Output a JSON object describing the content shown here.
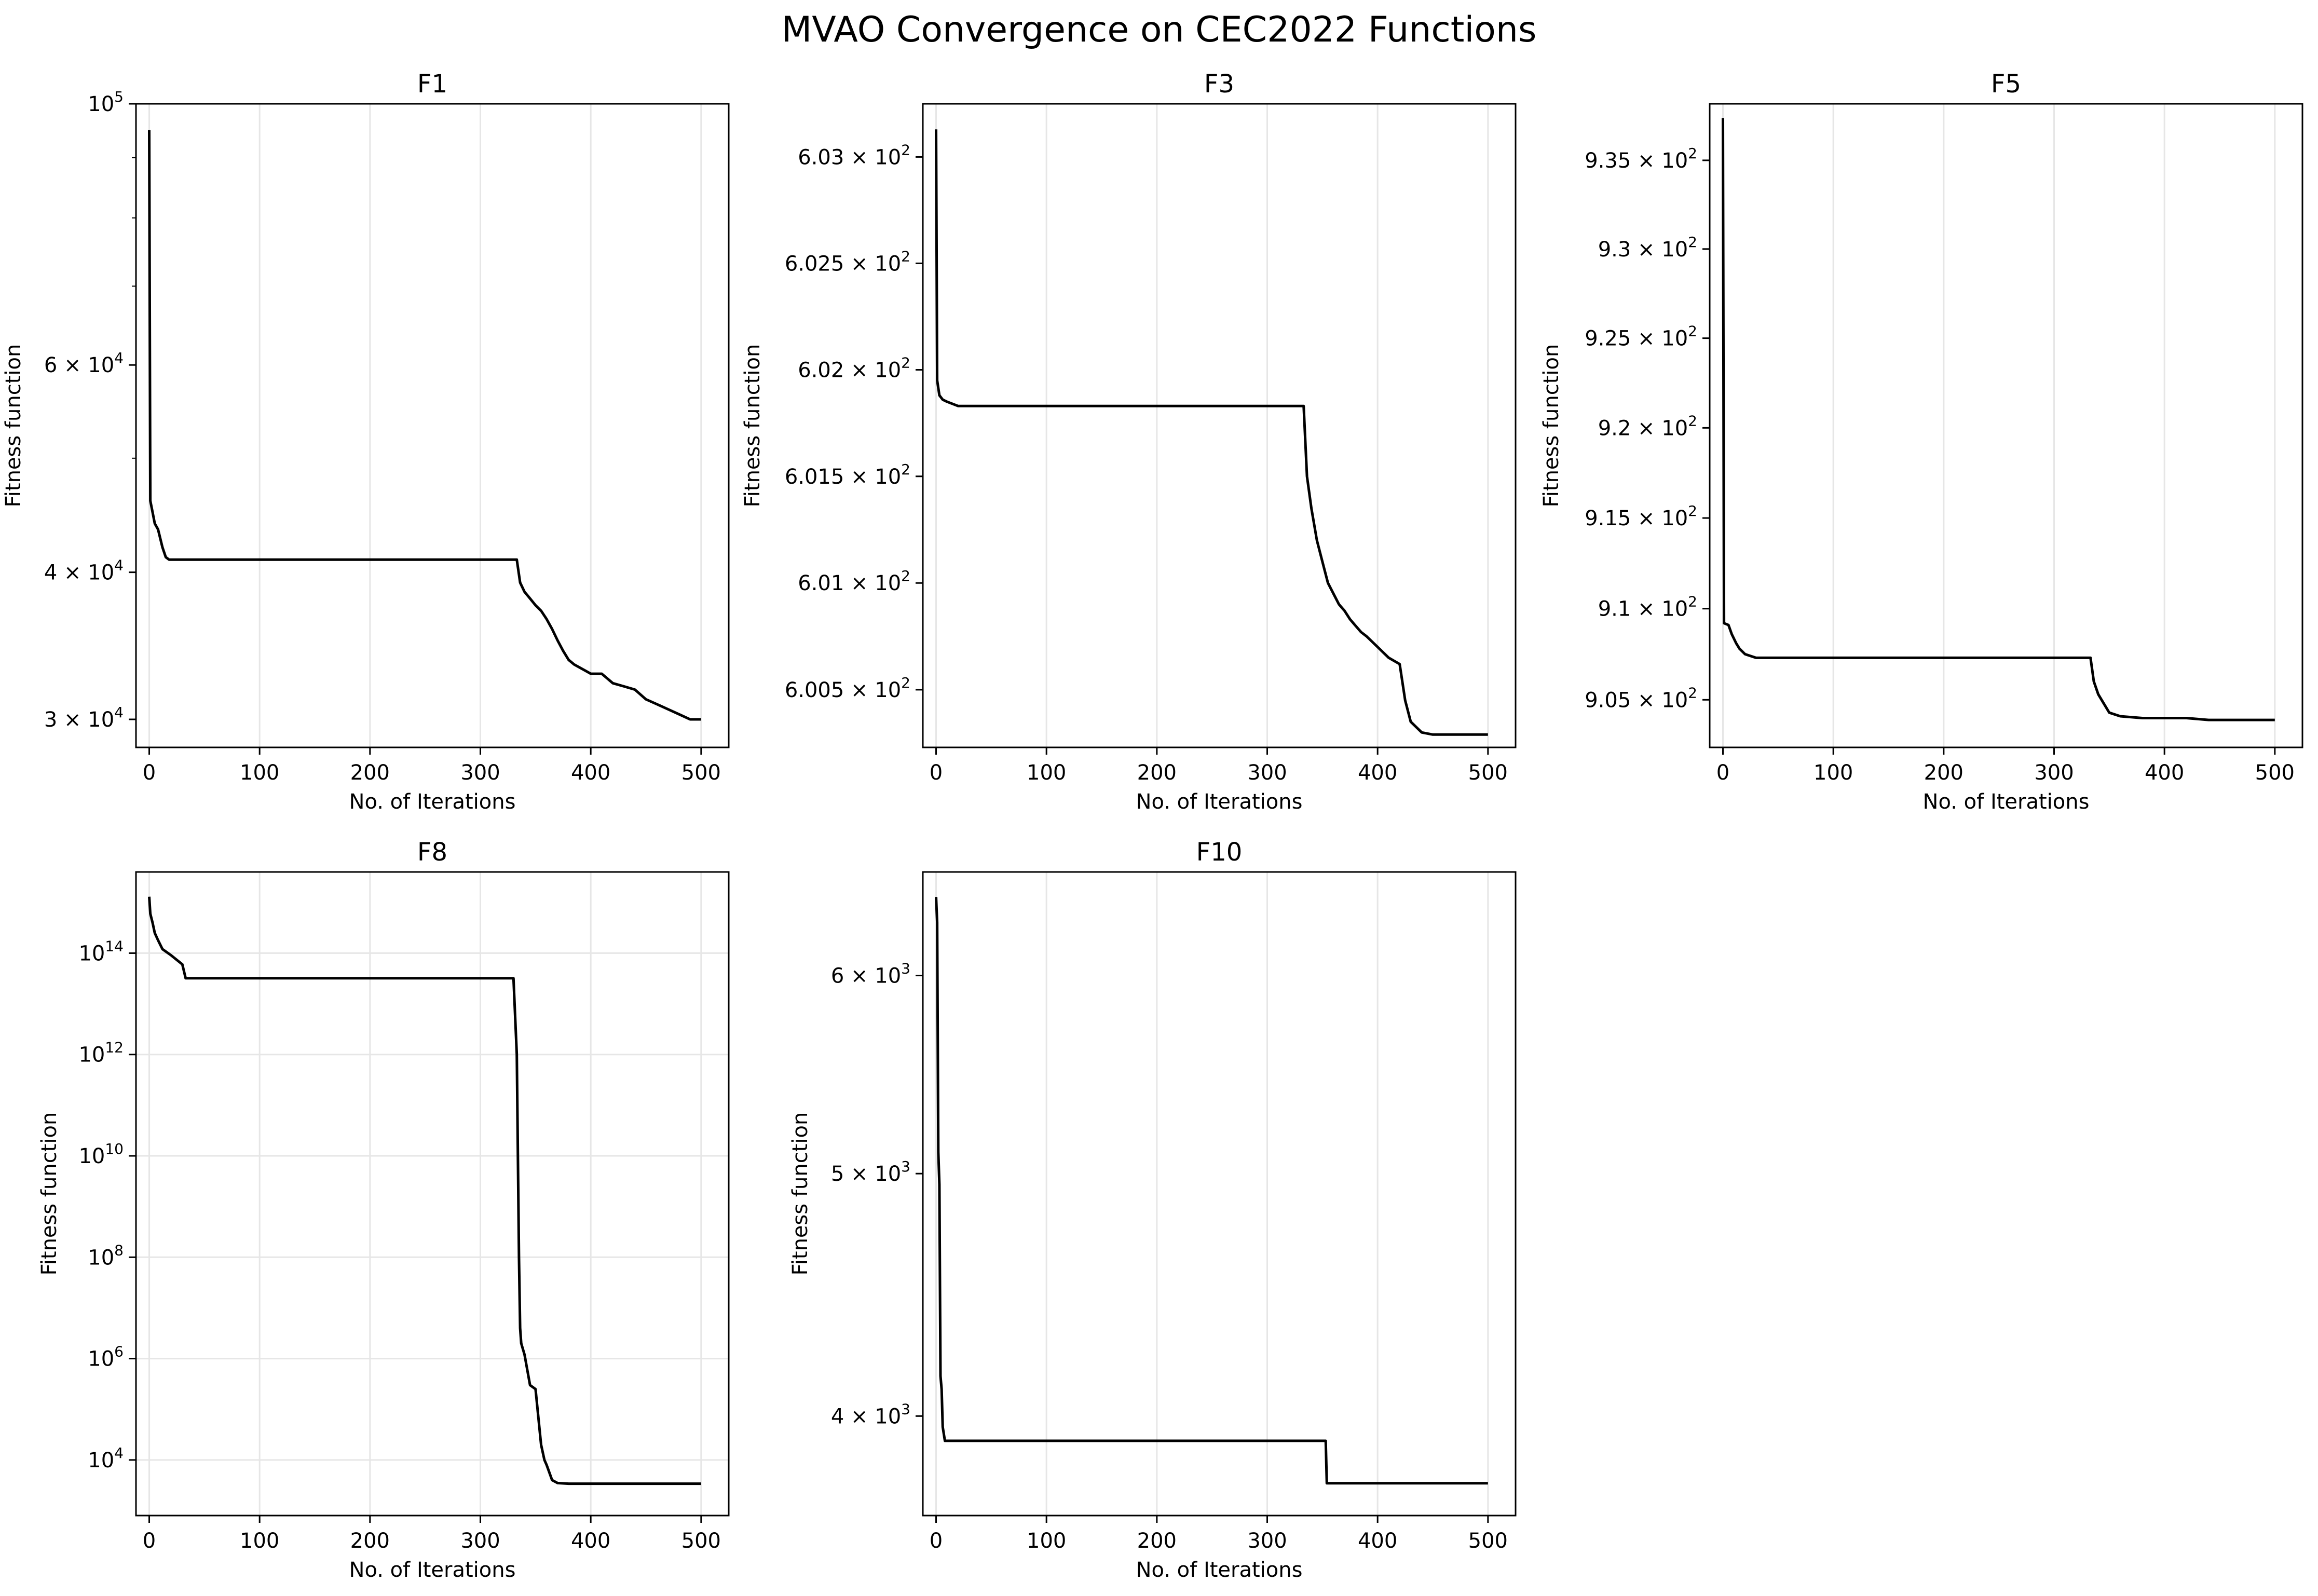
{
  "figure": {
    "title": "MVAO Convergence on CEC2022 Functions"
  },
  "chart_data": [
    {
      "type": "line",
      "title": "F1",
      "xlabel": "No. of Iterations",
      "ylabel": "Fitness function",
      "xlim": [
        -12,
        525
      ],
      "ylim": [
        28400,
        100000
      ],
      "yscale": "log",
      "grid": "x-only",
      "xticks": [
        0,
        100,
        200,
        300,
        400,
        500
      ],
      "xtick_labels": [
        "0",
        "100",
        "200",
        "300",
        "400",
        "500"
      ],
      "yticks": [
        100000,
        60000,
        40000,
        30000
      ],
      "ytick_labels": [
        [
          "10",
          "5"
        ],
        [
          "6 × 10",
          "4"
        ],
        [
          "4 × 10",
          "4"
        ],
        [
          "3 × 10",
          "4"
        ]
      ],
      "series": [
        {
          "color": "#000000",
          "x": [
            0,
            1,
            3,
            5,
            8,
            12,
            15,
            18,
            60,
            120,
            200,
            333,
            336,
            340,
            345,
            350,
            355,
            360,
            365,
            370,
            375,
            380,
            385,
            390,
            395,
            400,
            410,
            420,
            430,
            440,
            450,
            460,
            470,
            480,
            490,
            500
          ],
          "y": [
            95000,
            46000,
            45000,
            44000,
            43500,
            42000,
            41200,
            41000,
            41000,
            41000,
            41000,
            41000,
            39200,
            38500,
            38000,
            37500,
            37100,
            36500,
            35800,
            35000,
            34300,
            33700,
            33400,
            33200,
            33000,
            32800,
            32800,
            32200,
            32000,
            31800,
            31200,
            30900,
            30600,
            30300,
            30000,
            30000
          ]
        }
      ]
    },
    {
      "type": "line",
      "title": "F3",
      "xlabel": "No. of Iterations",
      "ylabel": "Fitness function",
      "xlim": [
        -12,
        525
      ],
      "ylim": [
        600.23,
        603.25
      ],
      "yscale": "log",
      "grid": "x-only",
      "xticks": [
        0,
        100,
        200,
        300,
        400,
        500
      ],
      "xtick_labels": [
        "0",
        "100",
        "200",
        "300",
        "400",
        "500"
      ],
      "yticks": [
        603.0,
        602.5,
        602.0,
        601.5,
        601.0,
        600.5
      ],
      "ytick_labels": [
        [
          "6.03 × 10",
          "2"
        ],
        [
          "6.025 × 10",
          "2"
        ],
        [
          "6.02 × 10",
          "2"
        ],
        [
          "6.015 × 10",
          "2"
        ],
        [
          "6.01 × 10",
          "2"
        ],
        [
          "6.005 × 10",
          "2"
        ]
      ],
      "series": [
        {
          "color": "#000000",
          "x": [
            0,
            1,
            3,
            6,
            10,
            20,
            60,
            150,
            250,
            333,
            336,
            340,
            345,
            350,
            355,
            360,
            365,
            370,
            375,
            380,
            385,
            390,
            400,
            410,
            420,
            425,
            430,
            440,
            450,
            470,
            500
          ],
          "y": [
            603.13,
            601.95,
            601.88,
            601.86,
            601.85,
            601.83,
            601.83,
            601.83,
            601.83,
            601.83,
            601.5,
            601.35,
            601.2,
            601.1,
            601.0,
            600.95,
            600.9,
            600.87,
            600.83,
            600.8,
            600.77,
            600.75,
            600.7,
            600.65,
            600.62,
            600.45,
            600.35,
            600.3,
            600.29,
            600.29,
            600.29
          ]
        }
      ]
    },
    {
      "type": "line",
      "title": "F5",
      "xlabel": "No. of Iterations",
      "ylabel": "Fitness function",
      "xlim": [
        -12,
        525
      ],
      "ylim": [
        902.4,
        938.2
      ],
      "yscale": "log",
      "grid": "x-only",
      "xticks": [
        0,
        100,
        200,
        300,
        400,
        500
      ],
      "xtick_labels": [
        "0",
        "100",
        "200",
        "300",
        "400",
        "500"
      ],
      "yticks": [
        935,
        930,
        925,
        920,
        915,
        910,
        905
      ],
      "ytick_labels": [
        [
          "9.35 × 10",
          "2"
        ],
        [
          "9.3 × 10",
          "2"
        ],
        [
          "9.25 × 10",
          "2"
        ],
        [
          "9.2 × 10",
          "2"
        ],
        [
          "9.15 × 10",
          "2"
        ],
        [
          "9.1 × 10",
          "2"
        ],
        [
          "9.05 × 10",
          "2"
        ]
      ],
      "series": [
        {
          "color": "#000000",
          "x": [
            0,
            1,
            5,
            8,
            12,
            15,
            20,
            30,
            100,
            200,
            333,
            336,
            340,
            345,
            350,
            360,
            380,
            420,
            440,
            500
          ],
          "y": [
            937.4,
            909.2,
            909.1,
            908.6,
            908.1,
            907.8,
            907.5,
            907.3,
            907.3,
            907.3,
            907.3,
            906.0,
            905.3,
            904.8,
            904.3,
            904.1,
            904.0,
            904.0,
            903.9,
            903.9
          ]
        }
      ]
    },
    {
      "type": "line",
      "title": "F8",
      "xlabel": "No. of Iterations",
      "ylabel": "Fitness function",
      "xlim": [
        -12,
        525
      ],
      "ylim": [
        800,
        4000000000000000.0
      ],
      "yscale": "log",
      "grid": "both",
      "xticks": [
        0,
        100,
        200,
        300,
        400,
        500
      ],
      "xtick_labels": [
        "0",
        "100",
        "200",
        "300",
        "400",
        "500"
      ],
      "yticks": [
        100000000000000.0,
        1000000000000.0,
        10000000000.0,
        100000000.0,
        1000000.0,
        10000.0
      ],
      "ytick_labels": [
        [
          "10",
          "14"
        ],
        [
          "10",
          "12"
        ],
        [
          "10",
          "10"
        ],
        [
          "10",
          "8"
        ],
        [
          "10",
          "6"
        ],
        [
          "10",
          "4"
        ]
      ],
      "series": [
        {
          "color": "#000000",
          "x": [
            0,
            1,
            3,
            5,
            8,
            12,
            20,
            30,
            33,
            100,
            200,
            330,
            333,
            334,
            335,
            336,
            337,
            340,
            345,
            350,
            355,
            358,
            360,
            365,
            370,
            380,
            400,
            500
          ],
          "y": [
            1300000000000000.0,
            600000000000000.0,
            400000000000000.0,
            250000000000000.0,
            180000000000000.0,
            120000000000000.0,
            90000000000000.0,
            60000000000000.0,
            32000000000000.0,
            32000000000000.0,
            32000000000000.0,
            32000000000000.0,
            1000000000000.0,
            10000000000.0,
            100000000.0,
            4000000.0,
            2000000.0,
            1200000.0,
            300000.0,
            250000.0,
            20000.0,
            10000.0,
            8000,
            4000,
            3500,
            3400,
            3400,
            3400
          ]
        }
      ]
    },
    {
      "type": "line",
      "title": "F10",
      "xlabel": "No. of Iterations",
      "ylabel": "Fitness function",
      "xlim": [
        -12,
        525
      ],
      "ylim": [
        3650,
        6600
      ],
      "yscale": "log",
      "grid": "x-only",
      "xticks": [
        0,
        100,
        200,
        300,
        400,
        500
      ],
      "xtick_labels": [
        "0",
        "100",
        "200",
        "300",
        "400",
        "500"
      ],
      "yticks": [
        6000,
        5000,
        4000
      ],
      "ytick_labels": [
        [
          "6 × 10",
          "3"
        ],
        [
          "5 × 10",
          "3"
        ],
        [
          "4 × 10",
          "3"
        ]
      ],
      "series": [
        {
          "color": "#000000",
          "x": [
            0,
            1,
            2,
            3,
            4,
            5,
            6,
            8,
            100,
            200,
            300,
            353,
            354,
            400,
            500
          ],
          "y": [
            6450,
            6300,
            5100,
            4950,
            4150,
            4100,
            3960,
            3910,
            3910,
            3910,
            3910,
            3910,
            3760,
            3760,
            3760
          ]
        }
      ]
    }
  ]
}
